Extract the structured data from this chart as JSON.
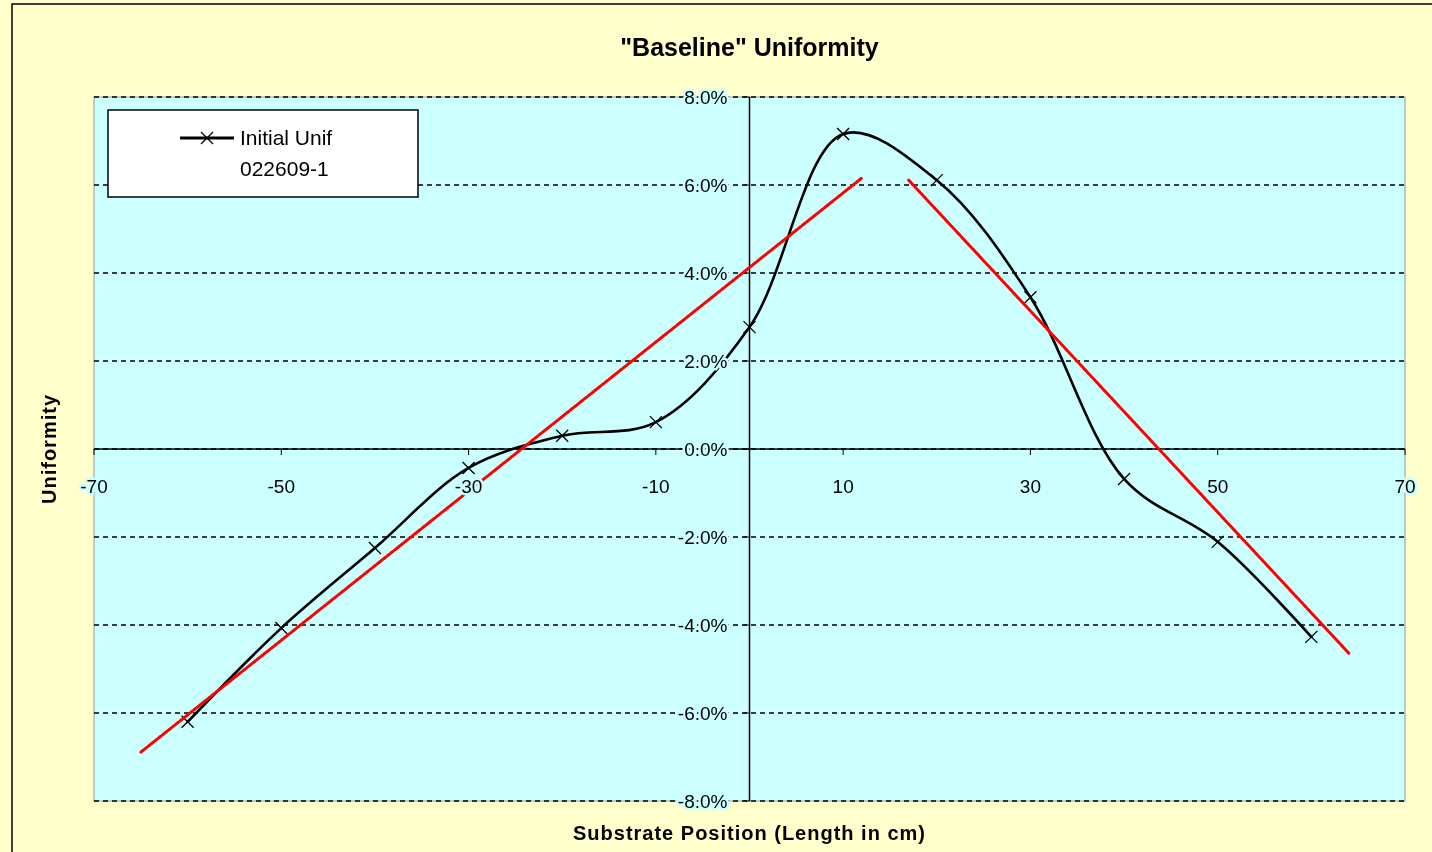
{
  "chart_data": {
    "type": "line",
    "title": "\"Baseline\" Uniformity",
    "xlabel": "Substrate Position (Length in cm)",
    "ylabel": "Uniformity",
    "xlim": [
      -70,
      70
    ],
    "xticks": [
      -70,
      -50,
      -30,
      -10,
      10,
      30,
      50,
      70
    ],
    "ylim": [
      -8,
      8
    ],
    "yticks": [
      {
        "value": -8,
        "label": "-8.0%"
      },
      {
        "value": -6,
        "label": "-6.0%"
      },
      {
        "value": -4,
        "label": "-4.0%"
      },
      {
        "value": -2,
        "label": "-2.0%"
      },
      {
        "value": 0,
        "label": "0.0%"
      },
      {
        "value": 2,
        "label": "2.0%"
      },
      {
        "value": 4,
        "label": "4.0%"
      },
      {
        "value": 6,
        "label": "6.0%"
      },
      {
        "value": 8,
        "label": "8.0%"
      }
    ],
    "grid": "y",
    "legend": "top left",
    "series": [
      {
        "name": "Initial Unif 022609-1",
        "color": "#000000",
        "marker": "cross",
        "line_style": "solid",
        "x": [
          -60,
          -50,
          -40,
          -30,
          -20,
          -10,
          0,
          10,
          20,
          30,
          40,
          50,
          60
        ],
        "values": [
          -6.2,
          -4.07,
          -2.25,
          -0.43,
          0.3,
          0.61,
          2.77,
          7.16,
          6.11,
          3.45,
          -0.68,
          -2.11,
          -4.27
        ]
      },
      {
        "color": "#ff0000",
        "marker": "none",
        "line_style": "dotted",
        "x": [
          -65,
          12
        ],
        "values": [
          -6.89,
          6.16
        ]
      },
      {
        "color": "#ff0000",
        "marker": "none",
        "line_style": "dotted",
        "x": [
          17,
          64
        ],
        "values": [
          6.11,
          -4.64
        ]
      }
    ]
  }
}
